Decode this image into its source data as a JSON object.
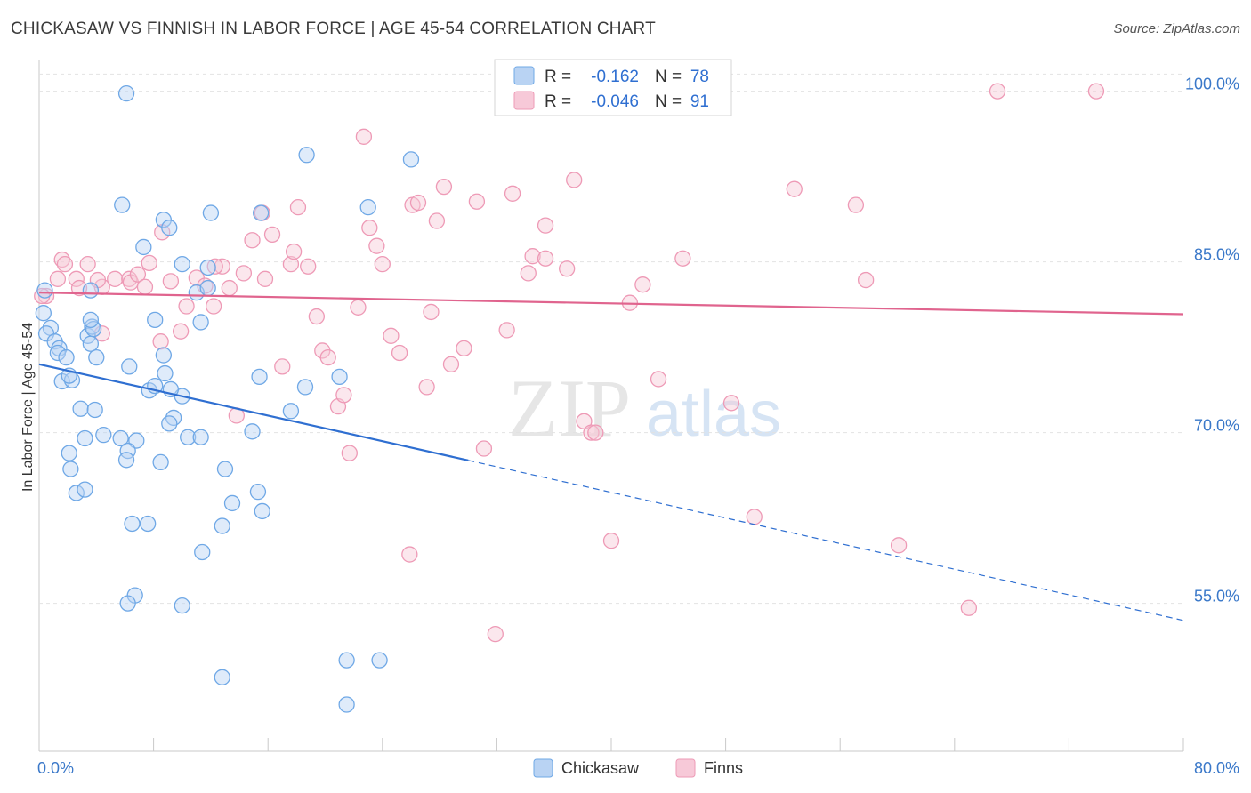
{
  "header": {
    "title": "CHICKASAW VS FINNISH IN LABOR FORCE | AGE 45-54 CORRELATION CHART",
    "source": "Source: ZipAtlas.com"
  },
  "watermark": {
    "zip": "ZIP",
    "atlas": "atlas"
  },
  "colors": {
    "chickasaw": "#6fa8e6",
    "chickasaw_fill": "#b9d3f3",
    "chickasaw_line": "#2f6fd1",
    "finns": "#ee9ab6",
    "finns_fill": "#f7c9d8",
    "finns_line": "#e0648e",
    "tick_text": "#3a78c9"
  },
  "legend_top": {
    "rows": [
      {
        "r_label": "R =",
        "r_value": "-0.162",
        "n_label": "N =",
        "n_value": "78"
      },
      {
        "r_label": "R =",
        "r_value": "-0.046",
        "n_label": "N =",
        "n_value": "91"
      }
    ]
  },
  "legend_bottom": {
    "items": [
      "Chickasaw",
      "Finns"
    ]
  },
  "chart_data": {
    "type": "scatter",
    "title": "CHICKASAW VS FINNISH IN LABOR FORCE | AGE 45-54 CORRELATION CHART",
    "xlabel": "",
    "ylabel": "In Labor Force | Age 45-54",
    "xlim": [
      0,
      80
    ],
    "ylim": [
      42,
      102
    ],
    "x_tick_labels": [
      "0.0%",
      "80.0%"
    ],
    "y_ticks": [
      55,
      70,
      85,
      100
    ],
    "y_tick_labels": [
      "55.0%",
      "70.0%",
      "85.0%",
      "100.0%"
    ],
    "grid": true,
    "legend_position": "top-center",
    "series": [
      {
        "name": "Chickasaw",
        "r": -0.162,
        "n": 78,
        "trend": {
          "x0": 0,
          "y0": 76.0,
          "x_solid_end": 30,
          "x1": 80,
          "y1": 53.5
        },
        "points": [
          [
            0.3,
            80.5
          ],
          [
            0.8,
            79.2
          ],
          [
            0.5,
            78.7
          ],
          [
            1.1,
            78.0
          ],
          [
            1.4,
            77.4
          ],
          [
            1.3,
            77.0
          ],
          [
            1.9,
            76.6
          ],
          [
            1.6,
            74.5
          ],
          [
            2.3,
            74.6
          ],
          [
            2.1,
            75.0
          ],
          [
            3.4,
            78.5
          ],
          [
            3.7,
            79.3
          ],
          [
            3.6,
            77.8
          ],
          [
            4.0,
            76.6
          ],
          [
            3.8,
            79.1
          ],
          [
            3.6,
            79.9
          ],
          [
            3.6,
            82.5
          ],
          [
            2.9,
            72.1
          ],
          [
            3.9,
            72.0
          ],
          [
            3.2,
            69.5
          ],
          [
            2.1,
            68.2
          ],
          [
            2.2,
            66.8
          ],
          [
            2.6,
            64.7
          ],
          [
            3.2,
            65.0
          ],
          [
            4.5,
            69.8
          ],
          [
            5.7,
            69.5
          ],
          [
            6.8,
            69.3
          ],
          [
            6.2,
            68.4
          ],
          [
            6.1,
            67.6
          ],
          [
            8.5,
            67.4
          ],
          [
            7.7,
            73.7
          ],
          [
            8.1,
            74.1
          ],
          [
            8.8,
            75.2
          ],
          [
            6.3,
            75.8
          ],
          [
            8.7,
            76.8
          ],
          [
            8.1,
            79.9
          ],
          [
            11.3,
            79.7
          ],
          [
            10.4,
            69.6
          ],
          [
            11.3,
            69.6
          ],
          [
            9.4,
            71.3
          ],
          [
            9.1,
            70.8
          ],
          [
            10.0,
            73.2
          ],
          [
            9.2,
            73.8
          ],
          [
            6.5,
            62.0
          ],
          [
            7.6,
            62.0
          ],
          [
            6.7,
            55.7
          ],
          [
            6.2,
            55.0
          ],
          [
            10.0,
            54.8
          ],
          [
            11.0,
            82.3
          ],
          [
            10.0,
            84.8
          ],
          [
            11.8,
            84.5
          ],
          [
            11.8,
            82.7
          ],
          [
            12.0,
            89.3
          ],
          [
            8.7,
            88.7
          ],
          [
            9.1,
            88.0
          ],
          [
            7.3,
            86.3
          ],
          [
            5.8,
            90.0
          ],
          [
            6.1,
            99.8
          ],
          [
            13.0,
            66.8
          ],
          [
            12.8,
            61.8
          ],
          [
            13.5,
            63.8
          ],
          [
            11.4,
            59.5
          ],
          [
            12.8,
            48.5
          ],
          [
            15.3,
            64.8
          ],
          [
            15.6,
            63.1
          ],
          [
            14.9,
            70.1
          ],
          [
            15.4,
            74.9
          ],
          [
            17.6,
            71.9
          ],
          [
            18.6,
            74.0
          ],
          [
            18.7,
            94.4
          ],
          [
            21.0,
            74.9
          ],
          [
            23.0,
            89.8
          ],
          [
            26.0,
            94.0
          ],
          [
            15.5,
            89.3
          ],
          [
            21.5,
            50.0
          ],
          [
            23.8,
            50.0
          ],
          [
            21.5,
            46.1
          ],
          [
            0.4,
            82.5
          ]
        ]
      },
      {
        "name": "Finns",
        "r": -0.046,
        "n": 91,
        "trend": {
          "x0": 0,
          "y0": 82.3,
          "x1": 80,
          "y1": 80.4
        },
        "points": [
          [
            0.5,
            82.0
          ],
          [
            1.3,
            83.5
          ],
          [
            1.6,
            85.2
          ],
          [
            1.8,
            84.8
          ],
          [
            2.6,
            83.5
          ],
          [
            3.4,
            84.8
          ],
          [
            2.8,
            82.7
          ],
          [
            4.4,
            82.8
          ],
          [
            4.1,
            83.4
          ],
          [
            4.4,
            78.7
          ],
          [
            5.3,
            83.5
          ],
          [
            6.3,
            83.5
          ],
          [
            6.4,
            83.2
          ],
          [
            6.9,
            83.9
          ],
          [
            7.4,
            82.8
          ],
          [
            7.7,
            84.9
          ],
          [
            8.5,
            78.0
          ],
          [
            8.6,
            87.6
          ],
          [
            9.2,
            83.3
          ],
          [
            9.9,
            78.9
          ],
          [
            10.3,
            81.1
          ],
          [
            11.0,
            83.6
          ],
          [
            11.6,
            82.9
          ],
          [
            12.2,
            81.1
          ],
          [
            12.8,
            84.6
          ],
          [
            12.3,
            84.6
          ],
          [
            13.3,
            82.7
          ],
          [
            13.8,
            71.5
          ],
          [
            14.3,
            84.0
          ],
          [
            14.9,
            86.9
          ],
          [
            15.6,
            89.3
          ],
          [
            15.8,
            83.5
          ],
          [
            16.3,
            87.4
          ],
          [
            17.0,
            75.8
          ],
          [
            17.6,
            84.8
          ],
          [
            17.8,
            85.9
          ],
          [
            18.1,
            89.8
          ],
          [
            18.8,
            84.6
          ],
          [
            19.4,
            80.2
          ],
          [
            19.8,
            77.2
          ],
          [
            20.2,
            76.6
          ],
          [
            20.9,
            72.3
          ],
          [
            21.3,
            73.3
          ],
          [
            21.7,
            68.2
          ],
          [
            22.3,
            81.0
          ],
          [
            22.7,
            96.0
          ],
          [
            23.1,
            88.0
          ],
          [
            23.6,
            86.4
          ],
          [
            24.0,
            84.8
          ],
          [
            24.6,
            78.5
          ],
          [
            25.2,
            77.0
          ],
          [
            26.1,
            90.0
          ],
          [
            26.5,
            90.2
          ],
          [
            27.1,
            74.0
          ],
          [
            27.4,
            80.6
          ],
          [
            27.8,
            88.6
          ],
          [
            28.3,
            91.6
          ],
          [
            28.8,
            76.0
          ],
          [
            29.7,
            77.4
          ],
          [
            30.6,
            90.3
          ],
          [
            31.1,
            68.6
          ],
          [
            31.9,
            52.3
          ],
          [
            32.7,
            79.0
          ],
          [
            33.1,
            91.0
          ],
          [
            34.2,
            84.0
          ],
          [
            34.5,
            85.5
          ],
          [
            35.4,
            85.3
          ],
          [
            35.4,
            88.2
          ],
          [
            36.9,
            84.4
          ],
          [
            37.4,
            92.2
          ],
          [
            38.1,
            71.0
          ],
          [
            38.6,
            70.0
          ],
          [
            38.9,
            70.0
          ],
          [
            40.0,
            60.5
          ],
          [
            41.3,
            81.4
          ],
          [
            42.2,
            83.0
          ],
          [
            43.3,
            74.7
          ],
          [
            45.0,
            85.3
          ],
          [
            48.4,
            72.6
          ],
          [
            50.0,
            62.6
          ],
          [
            52.8,
            91.4
          ],
          [
            57.1,
            90.0
          ],
          [
            57.8,
            83.4
          ],
          [
            60.1,
            60.1
          ],
          [
            65.0,
            54.6
          ],
          [
            67.0,
            100.0
          ],
          [
            73.9,
            100.0
          ],
          [
            46.3,
            100.0
          ],
          [
            41.5,
            99.8
          ],
          [
            25.9,
            59.3
          ],
          [
            0.2,
            82.0
          ]
        ]
      }
    ]
  }
}
